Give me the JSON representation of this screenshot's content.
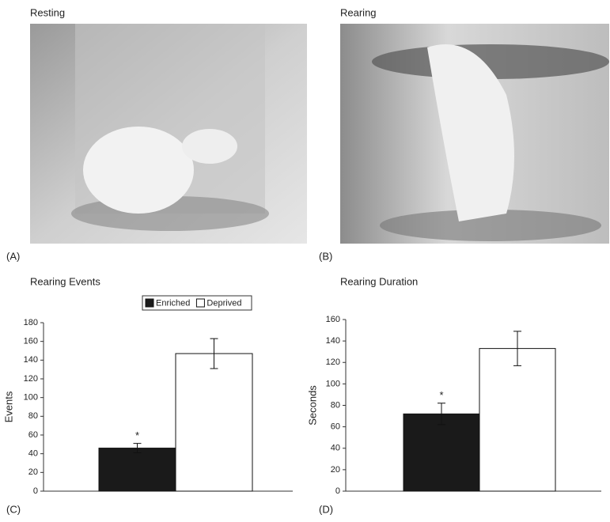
{
  "panels": [
    {
      "label": "(A)",
      "title": "Resting"
    },
    {
      "label": "(B)",
      "title": "Rearing"
    }
  ],
  "chart_data": [
    {
      "type": "bar",
      "panel": "(C)",
      "title": "Rearing Events",
      "y_label": "Events",
      "ylim": [
        0,
        180
      ],
      "yticks": [
        0,
        20,
        40,
        60,
        80,
        100,
        120,
        140,
        160,
        180
      ],
      "legend": "top",
      "series": [
        {
          "name": "Enriched",
          "color": "#1a1a1a",
          "values": [
            46
          ],
          "errors": [
            5
          ],
          "annotation": "*"
        },
        {
          "name": "Deprived",
          "color": "#ffffff",
          "values": [
            147
          ],
          "errors": [
            16
          ]
        }
      ]
    },
    {
      "type": "bar",
      "panel": "(D)",
      "title": "Rearing Duration",
      "y_label": "Seconds",
      "ylim": [
        0,
        160
      ],
      "yticks": [
        0,
        20,
        40,
        60,
        80,
        100,
        120,
        140,
        160
      ],
      "series": [
        {
          "color": "#1a1a1a",
          "values": [
            72
          ],
          "errors": [
            10
          ],
          "annotation": "*"
        },
        {
          "color": "#ffffff",
          "values": [
            133
          ],
          "errors": [
            16
          ]
        }
      ]
    }
  ]
}
